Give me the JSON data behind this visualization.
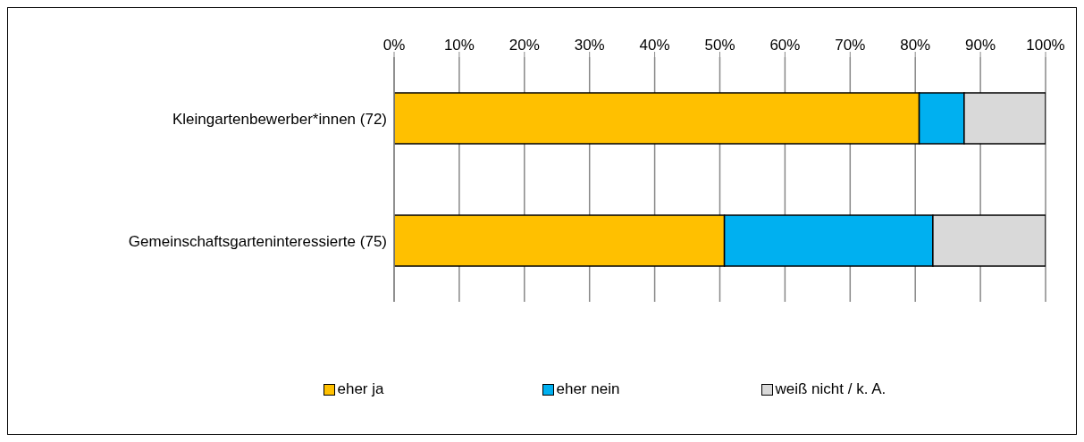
{
  "chart_data": {
    "type": "bar",
    "orientation": "horizontal",
    "stacked": true,
    "categories": [
      "Kleingartenbewerber*innen (72)",
      "Gemeinschaftsgarteninteressierte (75)"
    ],
    "series": [
      {
        "name": "eher ja",
        "color": "#ffc000",
        "values": [
          80.6,
          50.7
        ]
      },
      {
        "name": "eher nein",
        "color": "#00b0f0",
        "values": [
          6.9,
          32.0
        ]
      },
      {
        "name": "weiß nicht / k. A.",
        "color": "#d9d9d9",
        "values": [
          12.5,
          17.3
        ]
      }
    ],
    "xlim": [
      0,
      100
    ],
    "xticks": [
      {
        "value": 0,
        "label": "0%"
      },
      {
        "value": 10,
        "label": "10%"
      },
      {
        "value": 20,
        "label": "20%"
      },
      {
        "value": 30,
        "label": "30%"
      },
      {
        "value": 40,
        "label": "40%"
      },
      {
        "value": 50,
        "label": "50%"
      },
      {
        "value": 60,
        "label": "60%"
      },
      {
        "value": 70,
        "label": "70%"
      },
      {
        "value": 80,
        "label": "80%"
      },
      {
        "value": 90,
        "label": "90%"
      },
      {
        "value": 100,
        "label": "100%"
      }
    ],
    "grid": "x",
    "legend": "bottom"
  }
}
